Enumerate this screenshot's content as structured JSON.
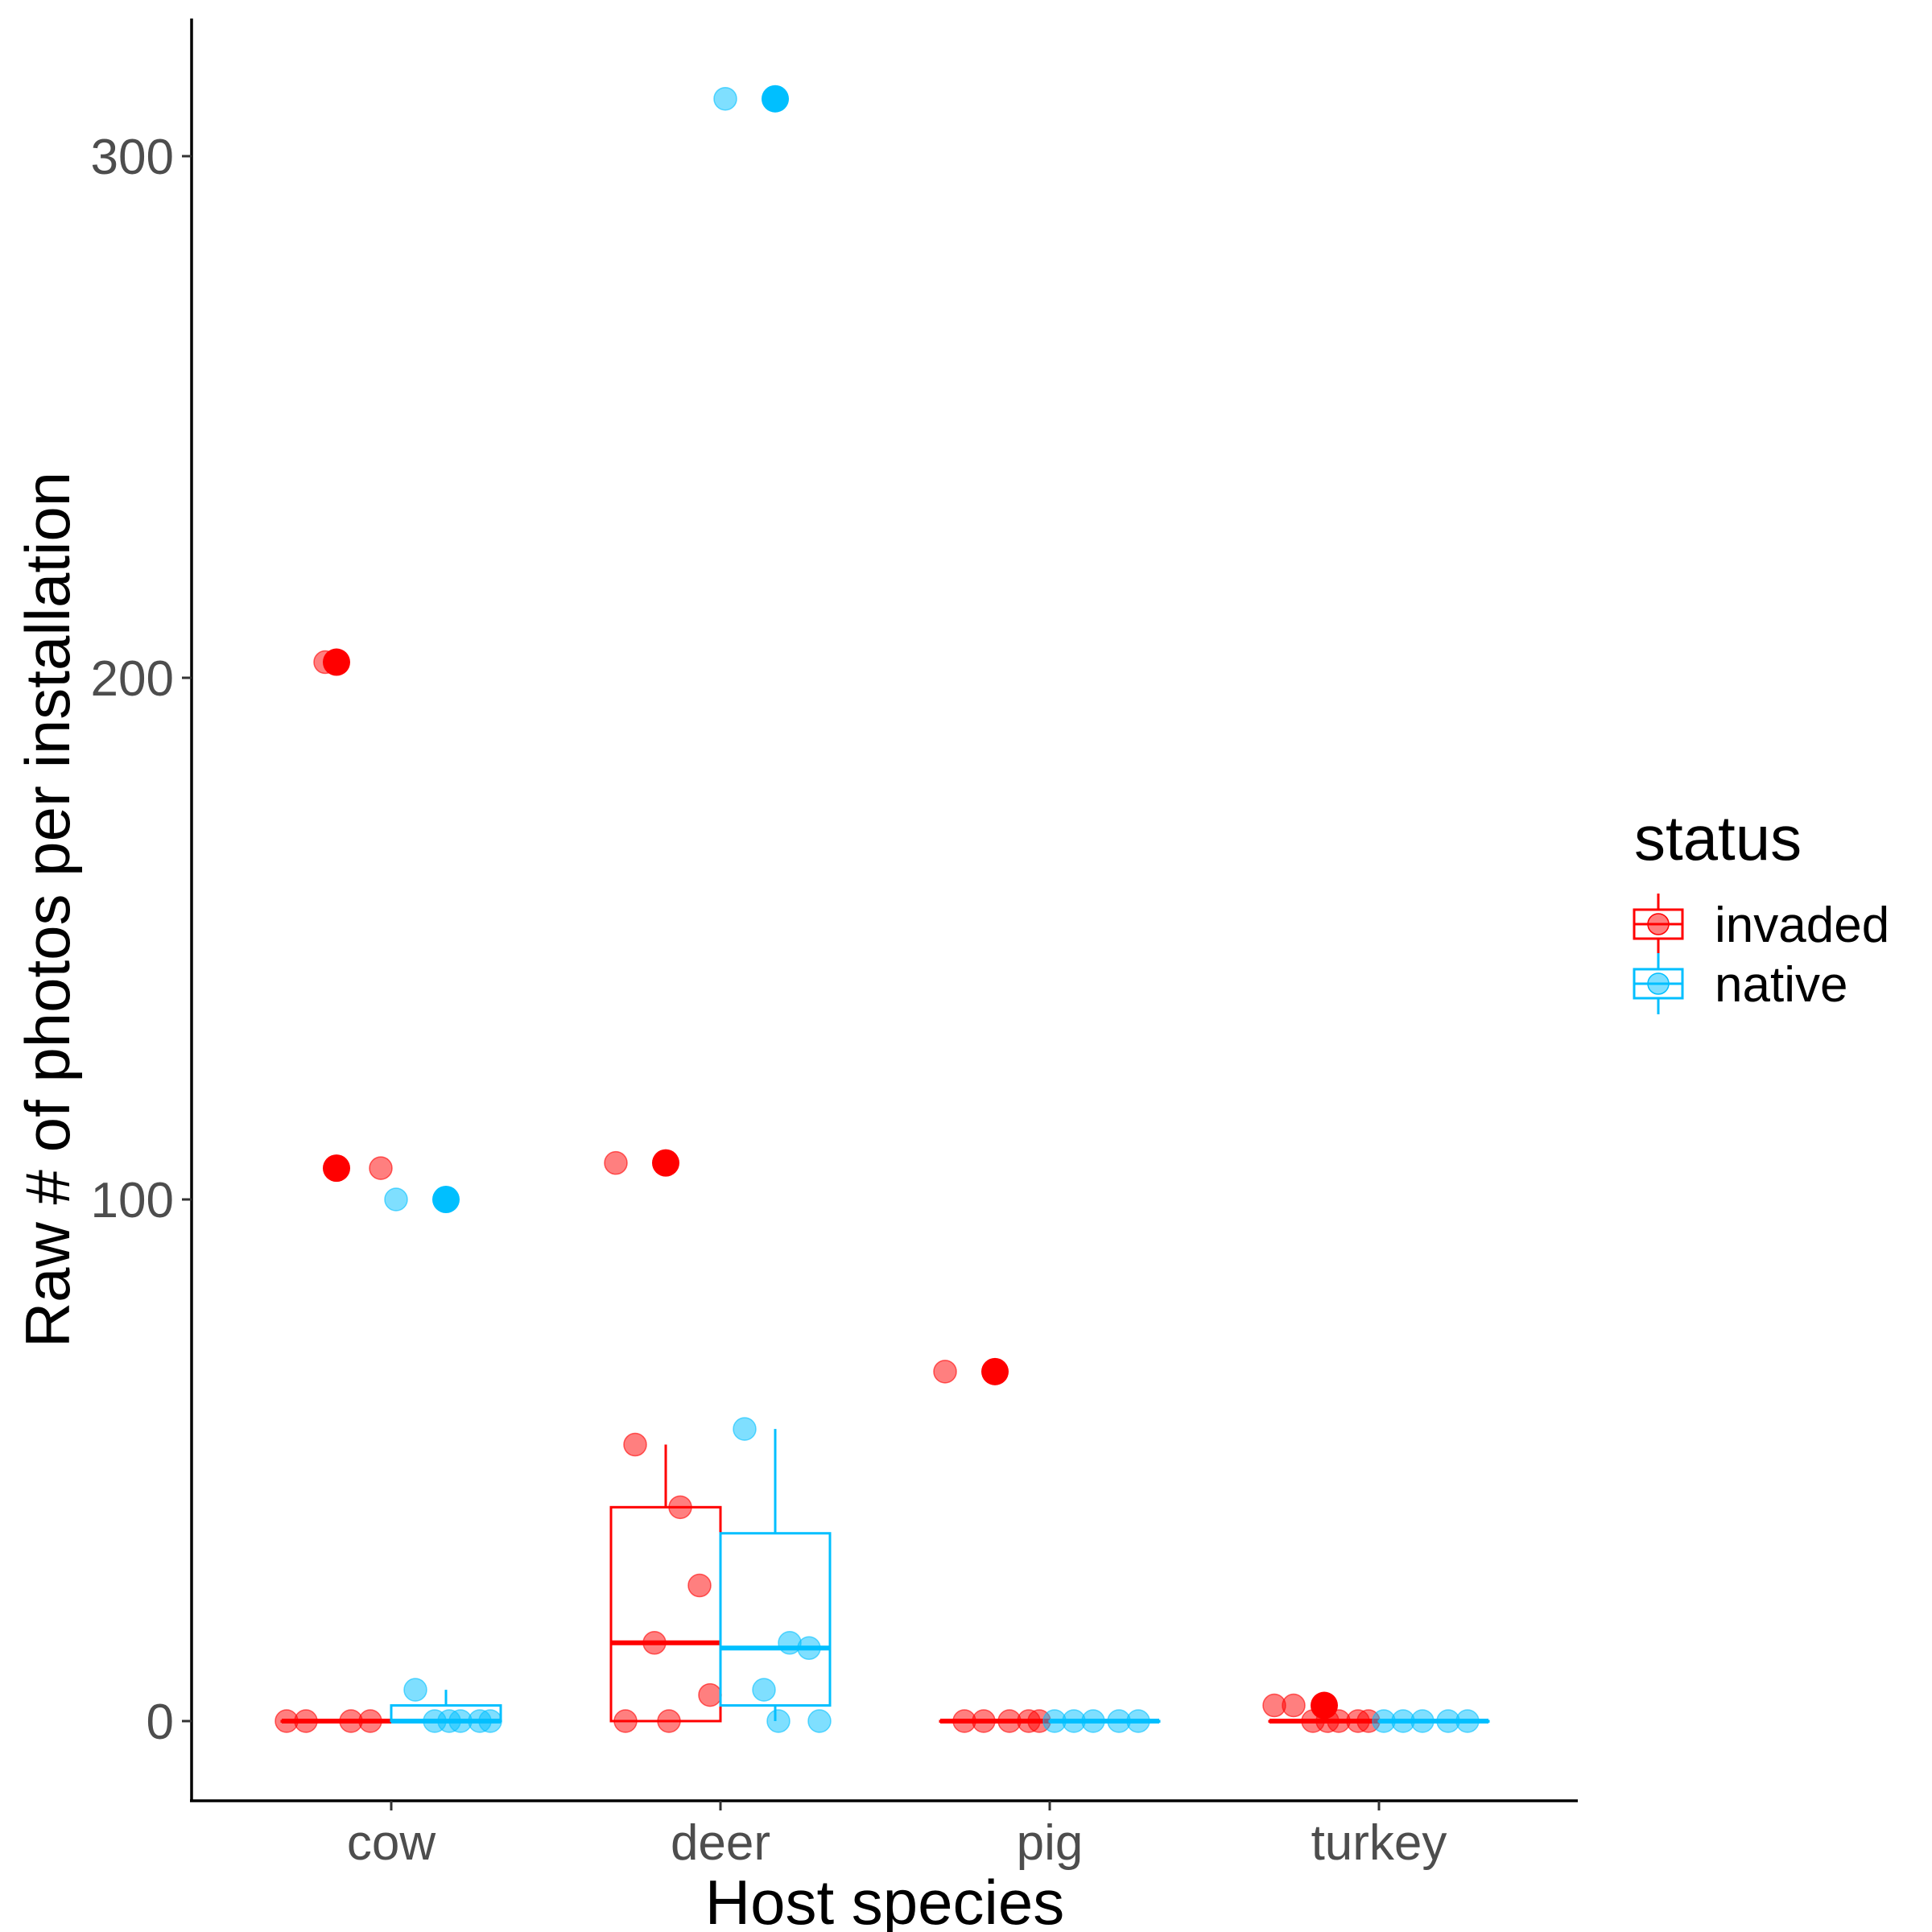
{
  "chart_data": {
    "type": "box",
    "title": "",
    "xlabel": "Host species",
    "ylabel": "Raw # of photos per installation",
    "categories": [
      "cow",
      "deer",
      "pig",
      "turkey"
    ],
    "ylim": [
      -15,
      325
    ],
    "yticks": [
      0,
      100,
      200,
      300
    ],
    "grid": false,
    "legend": {
      "title": "status",
      "position": "right"
    },
    "series": [
      {
        "name": "invaded",
        "color": "#FF0000",
        "boxes": [
          {
            "category": "cow",
            "min": 0,
            "q1": 0,
            "median": 0,
            "q3": 0,
            "max": 0,
            "outliers": [
              203,
              106
            ],
            "points": [
              0,
              0,
              0,
              0,
              203,
              106
            ]
          },
          {
            "category": "deer",
            "min": 0,
            "q1": 0,
            "median": 15,
            "q3": 41,
            "max": 53,
            "outliers": [
              107
            ],
            "points": [
              107,
              53,
              41,
              26,
              15,
              5,
              0,
              0
            ]
          },
          {
            "category": "pig",
            "min": 0,
            "q1": 0,
            "median": 0,
            "q3": 0,
            "max": 0,
            "outliers": [
              67
            ],
            "points": [
              67,
              0,
              0,
              0,
              0,
              0
            ]
          },
          {
            "category": "turkey",
            "min": 0,
            "q1": 0,
            "median": 0,
            "q3": 0,
            "max": 0,
            "outliers": [
              3
            ],
            "points": [
              3,
              3,
              0,
              0,
              0,
              0,
              0
            ]
          }
        ]
      },
      {
        "name": "native",
        "color": "#00BFFF",
        "boxes": [
          {
            "category": "cow",
            "min": 0,
            "q1": 0,
            "median": 0,
            "q3": 3,
            "max": 6,
            "outliers": [
              100
            ],
            "points": [
              100,
              6,
              0,
              0,
              0,
              0,
              0
            ]
          },
          {
            "category": "deer",
            "min": 0,
            "q1": 3,
            "median": 14,
            "q3": 36,
            "max": 56,
            "outliers": [
              311
            ],
            "points": [
              311,
              56,
              15,
              14,
              6,
              0,
              0
            ]
          },
          {
            "category": "pig",
            "min": 0,
            "q1": 0,
            "median": 0,
            "q3": 0,
            "max": 0,
            "outliers": [],
            "points": [
              0,
              0,
              0,
              0,
              0
            ]
          },
          {
            "category": "turkey",
            "min": 0,
            "q1": 0,
            "median": 0,
            "q3": 0,
            "max": 0,
            "outliers": [],
            "points": [
              0,
              0,
              0,
              0,
              0
            ]
          }
        ]
      }
    ]
  }
}
